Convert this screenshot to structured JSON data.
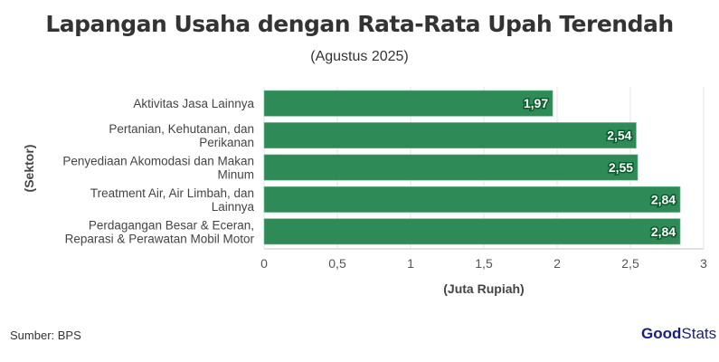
{
  "chart_data": {
    "type": "bar",
    "orientation": "horizontal",
    "title": "Lapangan Usaha dengan Rata-Rata Upah Terendah",
    "subtitle": "(Agustus 2025)",
    "xlabel": "(Juta Rupiah)",
    "ylabel": "(Sektor)",
    "categories": [
      [
        "Aktivitas Jasa Lainnya"
      ],
      [
        "Pertanian, Kehutanan, dan",
        "Perikanan"
      ],
      [
        "Penyediaan Akomodasi dan Makan",
        "Minum"
      ],
      [
        "Treatment Air, Air Limbah, dan",
        "Lainnya"
      ],
      [
        "Perdagangan Besar & Eceran,",
        "Reparasi & Perawatan Mobil Motor"
      ]
    ],
    "values": [
      1.97,
      2.54,
      2.55,
      2.84,
      2.84
    ],
    "data_labels": [
      "1,97",
      "2,54",
      "2,55",
      "2,84",
      "2,84"
    ],
    "xlim": [
      0,
      3
    ],
    "xticks": [
      0,
      0.5,
      1,
      1.5,
      2,
      2.5,
      3
    ],
    "xtick_labels": [
      "0",
      "0,5",
      "1",
      "1,5",
      "2",
      "2,5",
      "3"
    ],
    "grid": true,
    "bar_color": "#2e8b57"
  },
  "footer": {
    "source": "Sumber: BPS",
    "logo_bold": "Good",
    "logo_light": "Stats"
  }
}
